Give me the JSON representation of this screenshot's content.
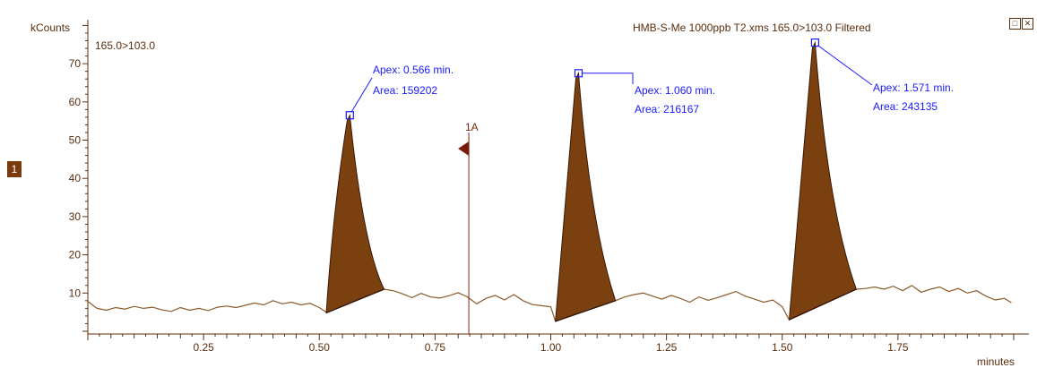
{
  "chart_data": {
    "type": "line",
    "trace_name": "HMB-S-Me 1000ppb T2.xms 165.0>103.0 Filtered",
    "channel_label": "165.0>103.0",
    "ylabel": "kCounts",
    "xlabel": "minutes",
    "xlim": [
      0.0,
      2.0
    ],
    "ylim": [
      0,
      82
    ],
    "x_ticks": [
      "0.25",
      "0.50",
      "0.75",
      "1.00",
      "1.25",
      "1.50",
      "1.75"
    ],
    "x_tick_values": [
      0.25,
      0.5,
      0.75,
      1.0,
      1.25,
      1.5,
      1.75
    ],
    "y_ticks": [
      "10",
      "20",
      "30",
      "40",
      "50",
      "60",
      "70"
    ],
    "y_tick_values": [
      10,
      20,
      30,
      40,
      50,
      60,
      70
    ],
    "baseline_points": [
      [
        0.0,
        7.8
      ],
      [
        0.02,
        6.0
      ],
      [
        0.04,
        5.5
      ],
      [
        0.06,
        6.2
      ],
      [
        0.08,
        5.8
      ],
      [
        0.1,
        6.5
      ],
      [
        0.12,
        6.0
      ],
      [
        0.14,
        6.3
      ],
      [
        0.16,
        5.6
      ],
      [
        0.18,
        5.2
      ],
      [
        0.2,
        6.2
      ],
      [
        0.22,
        5.5
      ],
      [
        0.24,
        6.0
      ],
      [
        0.26,
        5.4
      ],
      [
        0.28,
        6.3
      ],
      [
        0.3,
        6.6
      ],
      [
        0.32,
        6.2
      ],
      [
        0.34,
        6.8
      ],
      [
        0.36,
        7.4
      ],
      [
        0.38,
        6.9
      ],
      [
        0.4,
        8.0
      ],
      [
        0.42,
        7.2
      ],
      [
        0.44,
        7.6
      ],
      [
        0.46,
        6.9
      ],
      [
        0.48,
        7.3
      ],
      [
        0.5,
        6.2
      ],
      [
        0.515,
        5.0
      ],
      [
        0.64,
        11.0
      ],
      [
        0.66,
        10.6
      ],
      [
        0.68,
        9.8
      ],
      [
        0.7,
        8.8
      ],
      [
        0.72,
        9.9
      ],
      [
        0.74,
        9.0
      ],
      [
        0.76,
        8.7
      ],
      [
        0.78,
        9.3
      ],
      [
        0.8,
        10.1
      ],
      [
        0.82,
        9.0
      ],
      [
        0.84,
        7.2
      ],
      [
        0.86,
        8.6
      ],
      [
        0.88,
        9.4
      ],
      [
        0.9,
        8.2
      ],
      [
        0.92,
        9.6
      ],
      [
        0.94,
        8.0
      ],
      [
        0.96,
        7.0
      ],
      [
        0.98,
        6.7
      ],
      [
        1.0,
        6.4
      ],
      [
        1.01,
        2.6
      ],
      [
        1.14,
        8.0
      ],
      [
        1.16,
        9.0
      ],
      [
        1.18,
        9.6
      ],
      [
        1.2,
        10.0
      ],
      [
        1.22,
        9.2
      ],
      [
        1.24,
        8.4
      ],
      [
        1.26,
        9.4
      ],
      [
        1.28,
        8.6
      ],
      [
        1.3,
        7.6
      ],
      [
        1.32,
        9.0
      ],
      [
        1.34,
        8.1
      ],
      [
        1.36,
        8.8
      ],
      [
        1.38,
        9.6
      ],
      [
        1.4,
        10.4
      ],
      [
        1.42,
        9.2
      ],
      [
        1.44,
        8.4
      ],
      [
        1.46,
        7.6
      ],
      [
        1.48,
        8.2
      ],
      [
        1.5,
        6.4
      ],
      [
        1.515,
        3.0
      ],
      [
        1.66,
        11.0
      ],
      [
        1.68,
        11.2
      ],
      [
        1.7,
        11.6
      ],
      [
        1.72,
        11.0
      ],
      [
        1.74,
        11.8
      ],
      [
        1.76,
        10.6
      ],
      [
        1.78,
        12.0
      ],
      [
        1.8,
        10.2
      ],
      [
        1.82,
        11.0
      ],
      [
        1.84,
        11.6
      ],
      [
        1.86,
        10.4
      ],
      [
        1.88,
        11.2
      ],
      [
        1.9,
        10.0
      ],
      [
        1.92,
        10.6
      ],
      [
        1.94,
        9.2
      ],
      [
        1.96,
        8.2
      ],
      [
        1.98,
        8.6
      ],
      [
        1.995,
        7.5
      ]
    ],
    "peaks": [
      {
        "apex_label": "Apex: 0.566 min.",
        "area_label": "Area: 159202",
        "apex_x": 0.566,
        "apex_y": 56.5,
        "start": [
          0.515,
          4.8
        ],
        "end": [
          0.64,
          11.0
        ],
        "left_mid": [
          0.53,
          32.0
        ],
        "right_mid": [
          0.595,
          22.0
        ]
      },
      {
        "apex_label": "Apex: 1.060 min.",
        "area_label": "Area: 216167",
        "apex_x": 1.06,
        "apex_y": 67.5,
        "start": [
          1.01,
          2.6
        ],
        "end": [
          1.14,
          8.0
        ],
        "left_mid": [
          1.035,
          40.0
        ],
        "right_mid": [
          1.085,
          28.0
        ]
      },
      {
        "apex_label": "Apex: 1.571 min.",
        "area_label": "Area: 243135",
        "apex_x": 1.571,
        "apex_y": 75.5,
        "start": [
          1.515,
          3.0
        ],
        "end": [
          1.66,
          11.0
        ],
        "left_mid": [
          1.545,
          45.0
        ],
        "right_mid": [
          1.598,
          32.0
        ]
      }
    ],
    "marker": {
      "label": "1A",
      "x": 0.823
    },
    "colors": {
      "trace": "#8b5a2b",
      "peak_fill": "#7a4010",
      "annotation": "#1a1aff",
      "axis": "#5a2d0c"
    }
  },
  "ui": {
    "pane_number": "1"
  }
}
